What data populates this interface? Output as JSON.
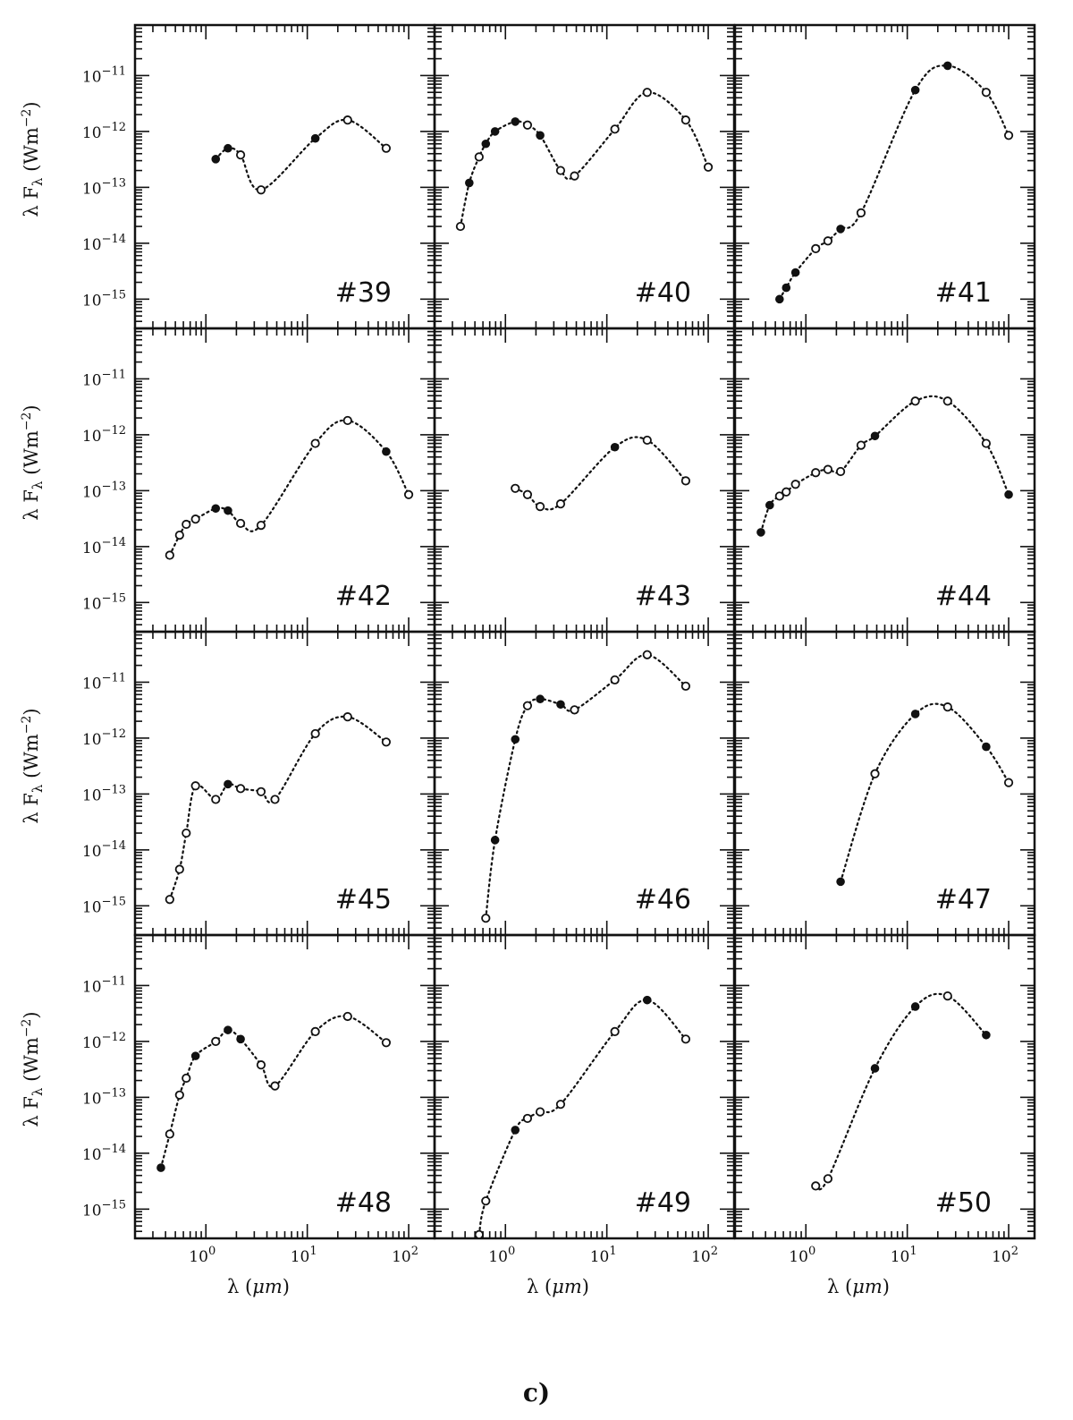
{
  "figure": {
    "caption": "c)",
    "ylabel": "λ F",
    "ylabel_sub": "λ",
    "ylabel_unit": "(Wm",
    "ylabel_unit_sup": "−2",
    "ylabel_unit_close": ")",
    "xlabel": "λ (",
    "xlabel_mu": "μm",
    "xlabel_close": ")"
  },
  "chart_data": {
    "type": "scatter",
    "layout": {
      "rows": 4,
      "cols": 3
    },
    "x_scale": "log",
    "y_scale": "log",
    "xlim": [
      0.2,
      180
    ],
    "ylim": [
      3e-16,
      8e-11
    ],
    "x_ticks": [
      {
        "value": 1,
        "base": "10",
        "exp": "0"
      },
      {
        "value": 10,
        "base": "10",
        "exp": "1"
      },
      {
        "value": 100,
        "base": "10",
        "exp": "2"
      }
    ],
    "y_ticks": [
      {
        "value": 1e-11,
        "base": "10",
        "exp": "−11"
      },
      {
        "value": 1e-12,
        "base": "10",
        "exp": "−12"
      },
      {
        "value": 1e-13,
        "base": "10",
        "exp": "−13"
      },
      {
        "value": 1e-14,
        "base": "10",
        "exp": "−14"
      },
      {
        "value": 1e-15,
        "base": "10",
        "exp": "−15"
      }
    ],
    "panels": [
      {
        "label": "#39",
        "points": [
          {
            "x": 1.25,
            "y": 3.2e-13,
            "f": 1
          },
          {
            "x": 1.65,
            "y": 5e-13,
            "f": 1
          },
          {
            "x": 2.2,
            "y": 3.8e-13,
            "f": 0
          },
          {
            "x": 3.5,
            "y": 9e-14,
            "f": 0
          },
          {
            "x": 12,
            "y": 7.5e-13,
            "f": 1
          },
          {
            "x": 25,
            "y": 1.6e-12,
            "f": 0
          },
          {
            "x": 60,
            "y": 5e-13,
            "f": 0
          }
        ]
      },
      {
        "label": "#40",
        "points": [
          {
            "x": 0.36,
            "y": 2e-14,
            "f": 0
          },
          {
            "x": 0.44,
            "y": 1.2e-13,
            "f": 1
          },
          {
            "x": 0.55,
            "y": 3.5e-13,
            "f": 0
          },
          {
            "x": 0.64,
            "y": 6e-13,
            "f": 1
          },
          {
            "x": 0.79,
            "y": 1e-12,
            "f": 1
          },
          {
            "x": 1.25,
            "y": 1.5e-12,
            "f": 1
          },
          {
            "x": 1.65,
            "y": 1.3e-12,
            "f": 0
          },
          {
            "x": 2.2,
            "y": 8.5e-13,
            "f": 1
          },
          {
            "x": 3.5,
            "y": 2e-13,
            "f": 0
          },
          {
            "x": 4.8,
            "y": 1.6e-13,
            "f": 0
          },
          {
            "x": 12,
            "y": 1.1e-12,
            "f": 0
          },
          {
            "x": 25,
            "y": 5e-12,
            "f": 0
          },
          {
            "x": 60,
            "y": 1.6e-12,
            "f": 0
          },
          {
            "x": 100,
            "y": 2.3e-13,
            "f": 0
          }
        ]
      },
      {
        "label": "#41",
        "points": [
          {
            "x": 0.55,
            "y": 1e-15,
            "f": 1
          },
          {
            "x": 0.64,
            "y": 1.6e-15,
            "f": 1
          },
          {
            "x": 0.79,
            "y": 3e-15,
            "f": 1
          },
          {
            "x": 1.25,
            "y": 8e-15,
            "f": 0
          },
          {
            "x": 1.65,
            "y": 1.1e-14,
            "f": 0
          },
          {
            "x": 2.2,
            "y": 1.8e-14,
            "f": 1
          },
          {
            "x": 3.5,
            "y": 3.5e-14,
            "f": 0
          },
          {
            "x": 12,
            "y": 5.5e-12,
            "f": 1
          },
          {
            "x": 25,
            "y": 1.5e-11,
            "f": 1
          },
          {
            "x": 60,
            "y": 5e-12,
            "f": 0
          },
          {
            "x": 100,
            "y": 8.5e-13,
            "f": 0
          }
        ]
      },
      {
        "label": "#42",
        "points": [
          {
            "x": 0.44,
            "y": 7e-15,
            "f": 0
          },
          {
            "x": 0.55,
            "y": 1.6e-14,
            "f": 0
          },
          {
            "x": 0.64,
            "y": 2.5e-14,
            "f": 0
          },
          {
            "x": 0.79,
            "y": 3.1e-14,
            "f": 0
          },
          {
            "x": 1.25,
            "y": 4.8e-14,
            "f": 1
          },
          {
            "x": 1.65,
            "y": 4.4e-14,
            "f": 1
          },
          {
            "x": 2.2,
            "y": 2.6e-14,
            "f": 0
          },
          {
            "x": 3.5,
            "y": 2.4e-14,
            "f": 0
          },
          {
            "x": 12,
            "y": 7e-13,
            "f": 0
          },
          {
            "x": 25,
            "y": 1.8e-12,
            "f": 0
          },
          {
            "x": 60,
            "y": 5e-13,
            "f": 1
          },
          {
            "x": 100,
            "y": 8.5e-14,
            "f": 0
          }
        ]
      },
      {
        "label": "#43",
        "points": [
          {
            "x": 1.25,
            "y": 1.1e-13,
            "f": 0
          },
          {
            "x": 1.65,
            "y": 8.5e-14,
            "f": 0
          },
          {
            "x": 2.2,
            "y": 5.2e-14,
            "f": 0
          },
          {
            "x": 3.5,
            "y": 5.8e-14,
            "f": 0
          },
          {
            "x": 12,
            "y": 6e-13,
            "f": 1
          },
          {
            "x": 25,
            "y": 8e-13,
            "f": 0
          },
          {
            "x": 60,
            "y": 1.5e-13,
            "f": 0
          }
        ]
      },
      {
        "label": "#44",
        "points": [
          {
            "x": 0.36,
            "y": 1.8e-14,
            "f": 1
          },
          {
            "x": 0.44,
            "y": 5.5e-14,
            "f": 1
          },
          {
            "x": 0.55,
            "y": 8e-14,
            "f": 0
          },
          {
            "x": 0.64,
            "y": 9.5e-14,
            "f": 0
          },
          {
            "x": 0.79,
            "y": 1.3e-13,
            "f": 0
          },
          {
            "x": 1.25,
            "y": 2.1e-13,
            "f": 0
          },
          {
            "x": 1.65,
            "y": 2.4e-13,
            "f": 0
          },
          {
            "x": 2.2,
            "y": 2.2e-13,
            "f": 0
          },
          {
            "x": 3.5,
            "y": 6.5e-13,
            "f": 0
          },
          {
            "x": 4.8,
            "y": 9.5e-13,
            "f": 1
          },
          {
            "x": 12,
            "y": 4e-12,
            "f": 0
          },
          {
            "x": 25,
            "y": 4e-12,
            "f": 0
          },
          {
            "x": 60,
            "y": 7e-13,
            "f": 0
          },
          {
            "x": 100,
            "y": 8.5e-14,
            "f": 1
          }
        ]
      },
      {
        "label": "#45",
        "points": [
          {
            "x": 0.44,
            "y": 1.3e-15,
            "f": 0
          },
          {
            "x": 0.55,
            "y": 4.5e-15,
            "f": 0
          },
          {
            "x": 0.64,
            "y": 2e-14,
            "f": 0
          },
          {
            "x": 0.79,
            "y": 1.4e-13,
            "f": 0
          },
          {
            "x": 1.25,
            "y": 8e-14,
            "f": 0
          },
          {
            "x": 1.65,
            "y": 1.5e-13,
            "f": 1
          },
          {
            "x": 2.2,
            "y": 1.25e-13,
            "f": 0
          },
          {
            "x": 3.5,
            "y": 1.1e-13,
            "f": 0
          },
          {
            "x": 4.8,
            "y": 8e-14,
            "f": 0
          },
          {
            "x": 12,
            "y": 1.2e-12,
            "f": 0
          },
          {
            "x": 25,
            "y": 2.4e-12,
            "f": 0
          },
          {
            "x": 60,
            "y": 8.5e-13,
            "f": 0
          }
        ]
      },
      {
        "label": "#46",
        "points": [
          {
            "x": 0.64,
            "y": 6e-16,
            "f": 0
          },
          {
            "x": 0.79,
            "y": 1.5e-14,
            "f": 1
          },
          {
            "x": 1.25,
            "y": 9.5e-13,
            "f": 1
          },
          {
            "x": 1.65,
            "y": 3.8e-12,
            "f": 0
          },
          {
            "x": 2.2,
            "y": 5e-12,
            "f": 1
          },
          {
            "x": 3.5,
            "y": 4e-12,
            "f": 1
          },
          {
            "x": 4.8,
            "y": 3.2e-12,
            "f": 0
          },
          {
            "x": 12,
            "y": 1.1e-11,
            "f": 0
          },
          {
            "x": 25,
            "y": 3.1e-11,
            "f": 0
          },
          {
            "x": 60,
            "y": 8.5e-12,
            "f": 0
          }
        ]
      },
      {
        "label": "#47",
        "points": [
          {
            "x": 2.2,
            "y": 2.7e-15,
            "f": 1
          },
          {
            "x": 4.8,
            "y": 2.3e-13,
            "f": 0
          },
          {
            "x": 12,
            "y": 2.7e-12,
            "f": 1
          },
          {
            "x": 25,
            "y": 3.6e-12,
            "f": 0
          },
          {
            "x": 60,
            "y": 7e-13,
            "f": 1
          },
          {
            "x": 100,
            "y": 1.6e-13,
            "f": 0
          }
        ]
      },
      {
        "label": "#48",
        "points": [
          {
            "x": 0.36,
            "y": 5.5e-15,
            "f": 1
          },
          {
            "x": 0.44,
            "y": 2.2e-14,
            "f": 0
          },
          {
            "x": 0.55,
            "y": 1.1e-13,
            "f": 0
          },
          {
            "x": 0.64,
            "y": 2.2e-13,
            "f": 0
          },
          {
            "x": 0.79,
            "y": 5.5e-13,
            "f": 1
          },
          {
            "x": 1.25,
            "y": 1e-12,
            "f": 0
          },
          {
            "x": 1.65,
            "y": 1.6e-12,
            "f": 1
          },
          {
            "x": 2.2,
            "y": 1.1e-12,
            "f": 1
          },
          {
            "x": 3.5,
            "y": 3.8e-13,
            "f": 0
          },
          {
            "x": 4.8,
            "y": 1.6e-13,
            "f": 0
          },
          {
            "x": 12,
            "y": 1.5e-12,
            "f": 0
          },
          {
            "x": 25,
            "y": 2.8e-12,
            "f": 0
          },
          {
            "x": 60,
            "y": 9.5e-13,
            "f": 0
          }
        ]
      },
      {
        "label": "#49",
        "points": [
          {
            "x": 0.55,
            "y": 3.5e-16,
            "f": 0
          },
          {
            "x": 0.64,
            "y": 1.4e-15,
            "f": 0
          },
          {
            "x": 1.25,
            "y": 2.6e-14,
            "f": 1
          },
          {
            "x": 1.65,
            "y": 4.2e-14,
            "f": 0
          },
          {
            "x": 2.2,
            "y": 5.5e-14,
            "f": 0
          },
          {
            "x": 3.5,
            "y": 7.5e-14,
            "f": 0
          },
          {
            "x": 12,
            "y": 1.5e-12,
            "f": 0
          },
          {
            "x": 25,
            "y": 5.5e-12,
            "f": 1
          },
          {
            "x": 60,
            "y": 1.1e-12,
            "f": 0
          }
        ]
      },
      {
        "label": "#50",
        "points": [
          {
            "x": 1.25,
            "y": 2.6e-15,
            "f": 0
          },
          {
            "x": 1.65,
            "y": 3.5e-15,
            "f": 0
          },
          {
            "x": 4.8,
            "y": 3.3e-13,
            "f": 1
          },
          {
            "x": 12,
            "y": 4.2e-12,
            "f": 1
          },
          {
            "x": 25,
            "y": 6.5e-12,
            "f": 0
          },
          {
            "x": 60,
            "y": 1.3e-12,
            "f": 1
          }
        ]
      }
    ]
  }
}
